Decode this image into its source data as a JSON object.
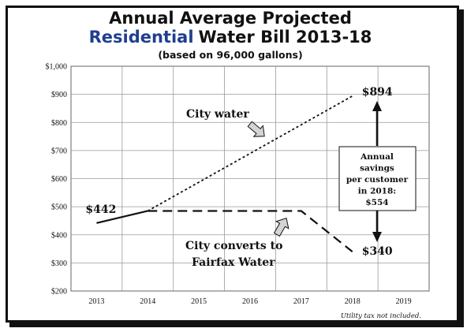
{
  "chart_data": {
    "type": "line",
    "title_line1": "Annual Average Projected",
    "title_line2_highlight": "Residential",
    "title_line2_rest": "Water Bill 2013-18",
    "subtitle": "(based on 96,000 gallons)",
    "xlabel": "",
    "ylabel": "",
    "x_ticks": [
      "2013",
      "2014",
      "2015",
      "2016",
      "2017",
      "2018",
      "2019"
    ],
    "y_ticks": [
      "$200",
      "$300",
      "$400",
      "$500",
      "$600",
      "$700",
      "$800",
      "$900",
      "$1,000"
    ],
    "ylim": [
      200,
      1000
    ],
    "grid": true,
    "series": [
      {
        "points": [
          {
            "x": 2013,
            "y": 442
          },
          {
            "x": 2014,
            "y": 485
          }
        ],
        "style": "solid"
      },
      {
        "name": "City water",
        "points": [
          {
            "x": 2014,
            "y": 485
          },
          {
            "x": 2018,
            "y": 894
          }
        ],
        "style": "dotted"
      },
      {
        "name": "City converts to Fairfax Water",
        "points": [
          {
            "x": 2014,
            "y": 485
          },
          {
            "x": 2017,
            "y": 485
          },
          {
            "x": 2018,
            "y": 340
          }
        ],
        "style": "dashed"
      }
    ],
    "data_labels": {
      "start": "$442",
      "city_end": "$894",
      "fairfax_end": "$340"
    },
    "annotations": {
      "city_water": "City water",
      "converts_line1": "City converts to",
      "converts_line2": "Fairfax Water",
      "savings_lines": [
        "Annual",
        "savings",
        "per customer",
        "in 2018:",
        "$554"
      ],
      "footnote": "Utility tax not included."
    },
    "colors": {
      "highlight": "#1f3f8f",
      "line": "#111111",
      "grid": "#9a9a9a",
      "arrow_fill": "#d4d4d4"
    }
  }
}
